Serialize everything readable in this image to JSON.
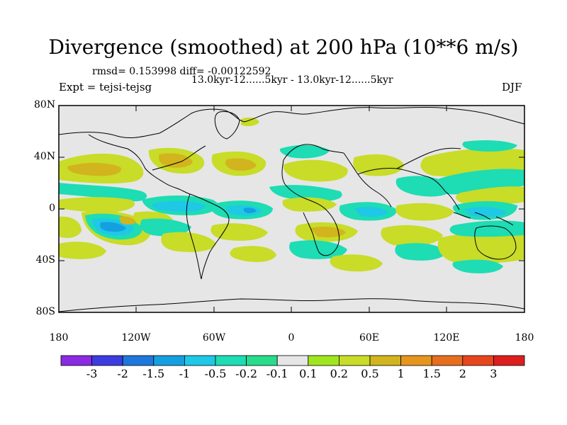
{
  "header": {
    "title": "Divergence (smoothed) at 200 hPa (10**6 m/s)",
    "stats": "rmsd= 0.153998 diff= -0.00122592",
    "subtitle": "13.0kyr-12......5kyr - 13.0kyr-12......5kyr",
    "expt": "Expt = tejsi-tejsg",
    "season": "DJF"
  },
  "axes": {
    "lat_labels": [
      "80N",
      "40N",
      "0",
      "40S",
      "80S"
    ],
    "lon_labels": [
      "180",
      "120W",
      "60W",
      "0",
      "60E",
      "120E",
      "180"
    ]
  },
  "colorbar": {
    "labels": [
      "-3",
      "-2",
      "-1.5",
      "-1",
      "-0.5",
      "-0.2",
      "-0.1",
      "0.1",
      "0.2",
      "0.5",
      "1",
      "1.5",
      "2",
      "3"
    ],
    "colors": [
      "#8a2be2",
      "#3c3ce0",
      "#1e78dc",
      "#14a0e0",
      "#1ec8e6",
      "#1edcb4",
      "#28dc8c",
      "#e6e6e6",
      "#a0e61e",
      "#c8dc28",
      "#d2b41e",
      "#e6961e",
      "#e66e1e",
      "#e6461e",
      "#dc1e1e"
    ]
  },
  "map": {
    "background_color": "#e6e6e6",
    "coastline_color": "#000000"
  }
}
